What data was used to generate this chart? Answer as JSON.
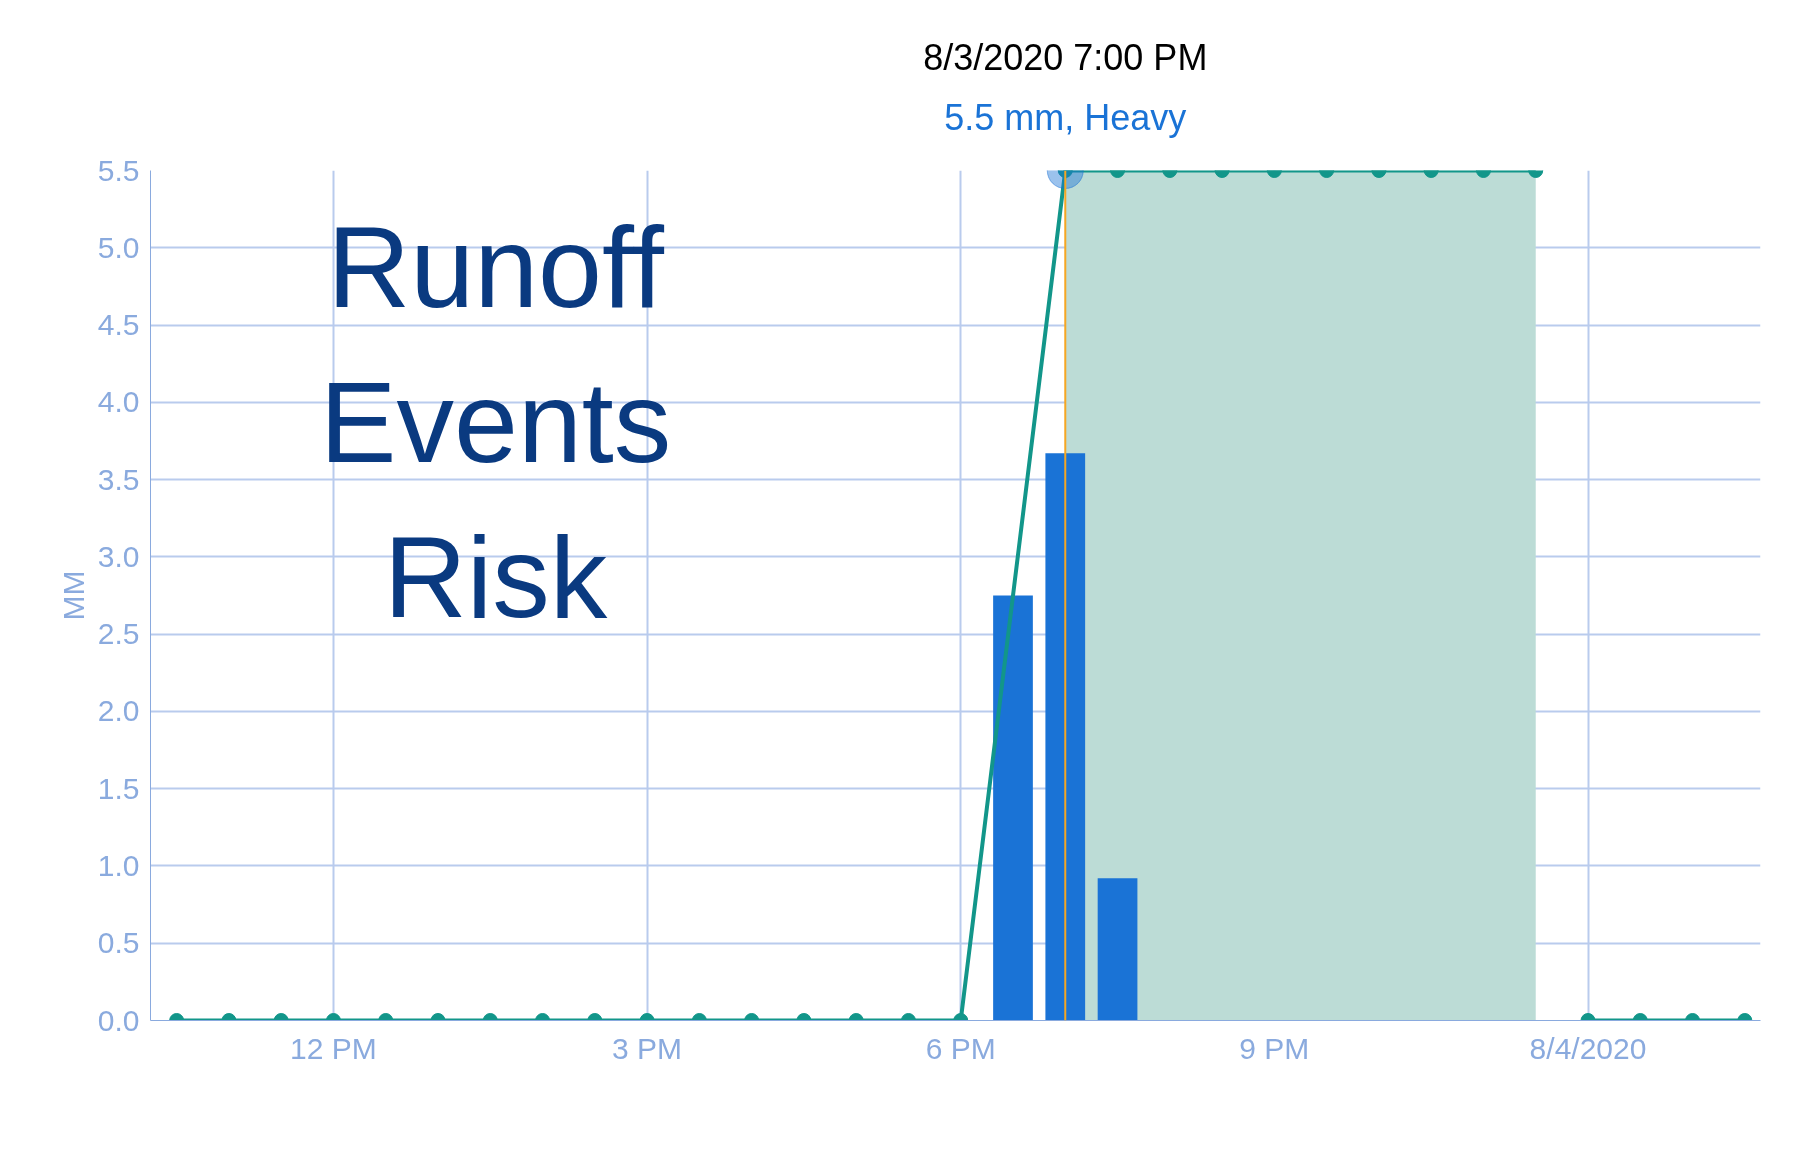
{
  "chart_data": {
    "type": "line",
    "ylabel": "MM",
    "annotations": [
      "Runoff Events Risk",
      {
        "text": "8/3/2020 7:00 PM",
        "x": "2020-08-03T19:00",
        "y": 5.5
      },
      {
        "text": "5.5 mm, Heavy",
        "x": "2020-08-03T19:00",
        "y": 5.5
      }
    ],
    "series": [
      {
        "type": "bar",
        "color": "#1a73d6",
        "x": [
          "2020-08-03T18:30",
          "2020-08-03T19:00",
          "2020-08-03T19:30"
        ],
        "values": [
          2.75,
          3.67,
          0.92
        ]
      },
      {
        "color": "#12968a",
        "marker": "circle",
        "x": [
          "2020-08-03T10:30",
          "2020-08-03T11:00",
          "2020-08-03T11:30",
          "2020-08-03T12:00",
          "2020-08-03T12:30",
          "2020-08-03T13:00",
          "2020-08-03T13:30",
          "2020-08-03T14:00",
          "2020-08-03T14:30",
          "2020-08-03T15:00",
          "2020-08-03T15:30",
          "2020-08-03T16:00",
          "2020-08-03T16:30",
          "2020-08-03T17:00",
          "2020-08-03T17:30",
          "2020-08-03T18:00",
          "2020-08-03T19:00",
          "2020-08-03T19:30",
          "2020-08-03T20:00",
          "2020-08-03T20:30",
          "2020-08-03T21:00",
          "2020-08-03T21:30",
          "2020-08-03T22:00",
          "2020-08-03T22:30",
          "2020-08-03T23:00",
          "2020-08-03T23:30"
        ],
        "values": [
          0,
          0,
          0,
          0,
          0,
          0,
          0,
          0,
          0,
          0,
          0,
          0,
          0,
          0,
          0,
          0,
          5.5,
          5.5,
          5.5,
          5.5,
          5.5,
          5.5,
          5.5,
          5.5,
          5.5,
          5.5
        ]
      },
      {
        "color": "#12968a",
        "marker": "circle",
        "x": [
          "2020-08-04T00:00",
          "2020-08-04T00:30",
          "2020-08-04T01:00",
          "2020-08-04T01:30"
        ],
        "values": [
          0,
          0,
          0,
          0
        ]
      }
    ],
    "bands": [
      {
        "axis": "x",
        "from": "2020-08-03T19:00",
        "to": "2020-08-03T23:30",
        "color": "#bcdcd6"
      }
    ],
    "ref_lines": [
      {
        "axis": "x",
        "value": "2020-08-03T19:00",
        "color": "#f5a623"
      }
    ],
    "xlim": [
      "2020-08-03T10:15",
      "2020-08-04T01:39"
    ],
    "ylim": [
      0,
      5.5
    ],
    "xticks": [
      {
        "value": "2020-08-03T12:00",
        "label": "12 PM"
      },
      {
        "value": "2020-08-03T15:00",
        "label": "3 PM"
      },
      {
        "value": "2020-08-03T18:00",
        "label": "6 PM"
      },
      {
        "value": "2020-08-03T21:00",
        "label": "9 PM"
      },
      {
        "value": "2020-08-04T00:00",
        "label": "8/4/2020"
      }
    ],
    "yticks": [
      {
        "value": 0,
        "label": "0.0"
      },
      0.5,
      {
        "value": 1,
        "label": "1.0"
      },
      1.5,
      {
        "value": 2,
        "label": "2.0"
      },
      2.5,
      {
        "value": 3,
        "label": "3.0"
      },
      3.5,
      {
        "value": 4,
        "label": "4.0"
      },
      4.5,
      {
        "value": 5,
        "label": "5.0"
      },
      5.5
    ],
    "grid": true
  }
}
